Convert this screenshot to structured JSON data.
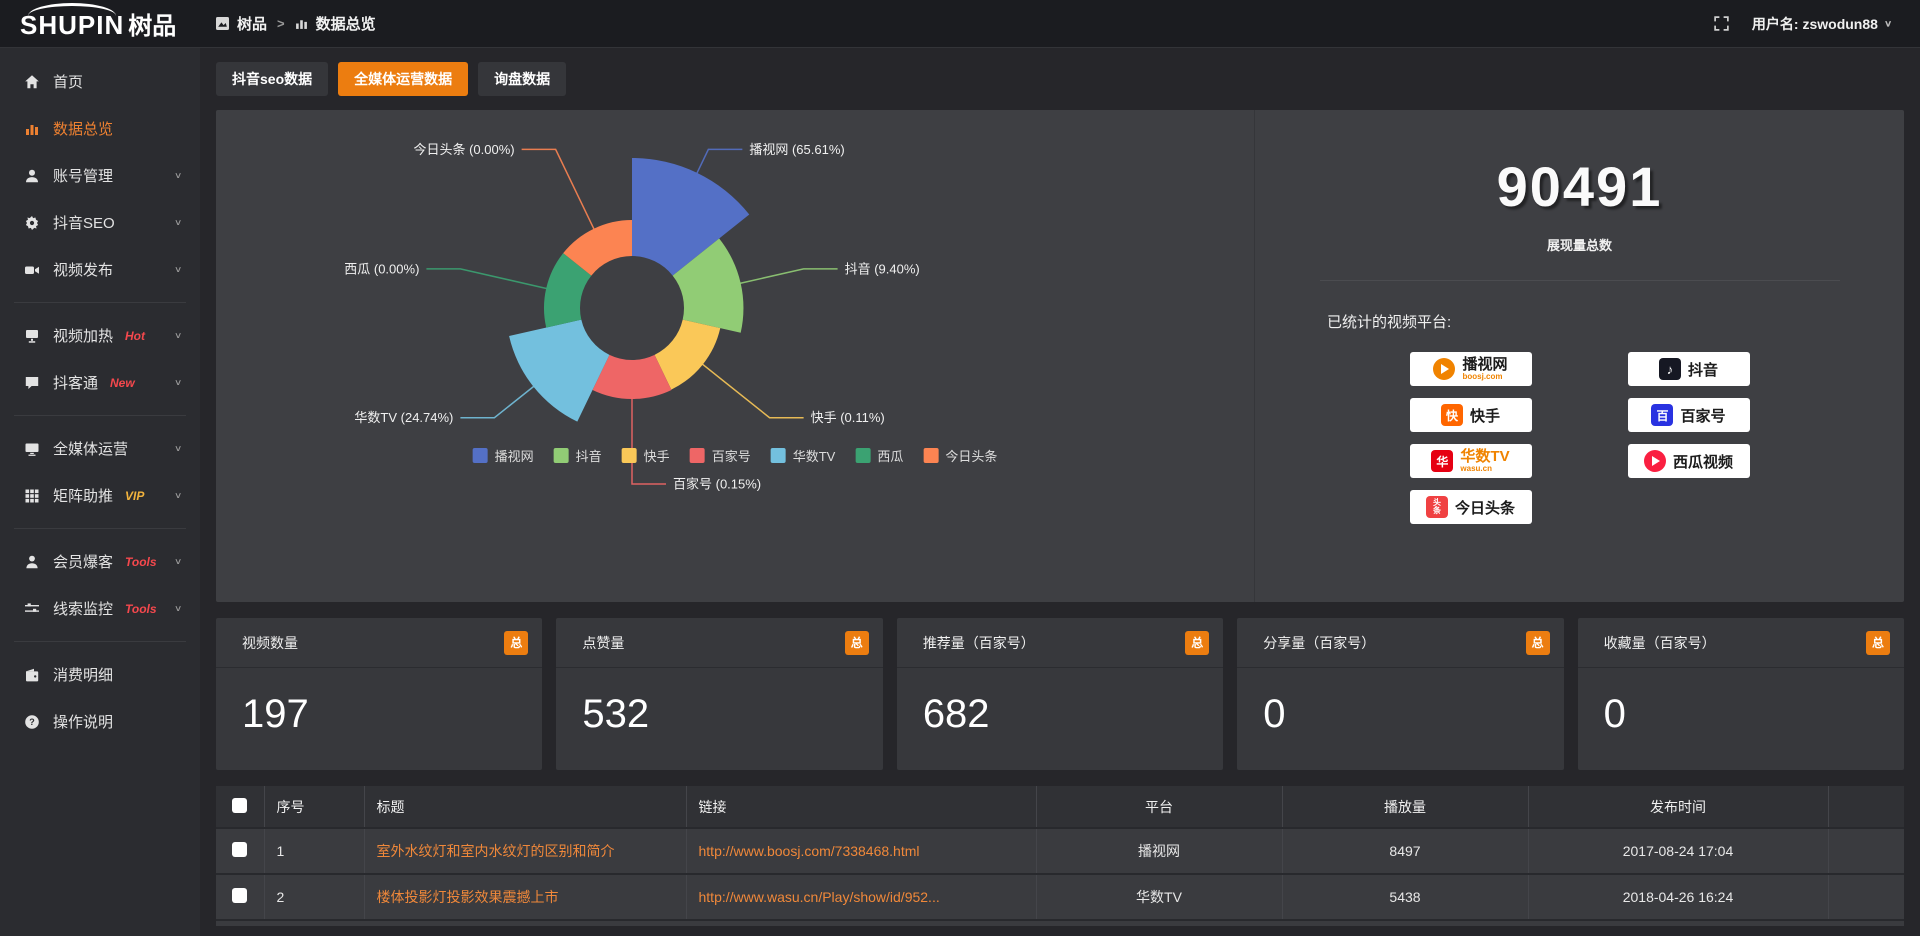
{
  "colors": {
    "accent": "#ec7d10",
    "link": "#f0883a",
    "badge_red": "#f5484d",
    "badge_gold": "#f2b33d"
  },
  "topbar": {
    "logo_en": "SHUPIN",
    "logo_cn": "树品",
    "breadcrumb": {
      "root": "树品",
      "sep": ">",
      "current": "数据总览"
    },
    "username": "用户名: zswodun88",
    "username_chevron": "∨"
  },
  "sidebar": {
    "items": [
      {
        "label": "首页"
      },
      {
        "label": "数据总览"
      },
      {
        "label": "账号管理"
      },
      {
        "label": "抖音SEO"
      },
      {
        "label": "视频发布"
      },
      {
        "label": "视频加热",
        "badge": "Hot"
      },
      {
        "label": "抖客通",
        "badge": "New"
      },
      {
        "label": "全媒体运营"
      },
      {
        "label": "矩阵助推",
        "badge": "VIP"
      },
      {
        "label": "会员爆客",
        "badge": "Tools"
      },
      {
        "label": "线索监控",
        "badge": "Tools"
      },
      {
        "label": "消费明细"
      },
      {
        "label": "操作说明"
      }
    ],
    "chevron": "∨"
  },
  "tabs": [
    {
      "label": "抖音seo数据",
      "active": false
    },
    {
      "label": "全媒体运营数据",
      "active": true
    },
    {
      "label": "询盘数据",
      "active": false
    }
  ],
  "chart_data": {
    "type": "pie",
    "style": "nightingale-rose, donut hole, outside labels with leader lines",
    "series": [
      {
        "name": "播视网",
        "percent": 65.61
      },
      {
        "name": "抖音",
        "percent": 9.4
      },
      {
        "name": "快手",
        "percent": 0.11
      },
      {
        "name": "百家号",
        "percent": 0.15
      },
      {
        "name": "华数TV",
        "percent": 24.74
      },
      {
        "name": "西瓜",
        "percent": 0.0
      },
      {
        "name": "今日头条",
        "percent": 0.0
      }
    ],
    "colors": [
      "#5470c6",
      "#91cc75",
      "#fac858",
      "#ee6666",
      "#73c0de",
      "#3ba272",
      "#fc8452"
    ],
    "label_format": "{name} ({percent}%)",
    "legend_position": "bottom"
  },
  "summary": {
    "total": "90491",
    "total_label": "展现量总数",
    "platforms_label": "已统计的视频平台:",
    "platforms": [
      {
        "name": "播视网",
        "sub": "boosj.com"
      },
      {
        "name": "抖音"
      },
      {
        "name": "快手"
      },
      {
        "name": "百家号"
      },
      {
        "name": "华数TV",
        "sub": "wasu.cn"
      },
      {
        "name": "西瓜视频"
      },
      {
        "name": "今日头条"
      }
    ]
  },
  "stats": [
    {
      "label": "视频数量",
      "value": "197",
      "badge": "总"
    },
    {
      "label": "点赞量",
      "value": "532",
      "badge": "总"
    },
    {
      "label": "推荐量（百家号）",
      "value": "682",
      "badge": "总"
    },
    {
      "label": "分享量（百家号）",
      "value": "0",
      "badge": "总"
    },
    {
      "label": "收藏量（百家号）",
      "value": "0",
      "badge": "总"
    }
  ],
  "table": {
    "headers": {
      "index": "序号",
      "title": "标题",
      "link": "链接",
      "platform": "平台",
      "plays": "播放量",
      "published": "发布时间"
    },
    "rows": [
      {
        "index": "1",
        "title": "室外水纹灯和室内水纹灯的区别和简介",
        "link": "http://www.boosj.com/7338468.html",
        "platform": "播视网",
        "plays": "8497",
        "published": "2017-08-24 17:04"
      },
      {
        "index": "2",
        "title": "楼体投影灯投影效果震撼上市",
        "link": "http://www.wasu.cn/Play/show/id/952...",
        "platform": "华数TV",
        "plays": "5438",
        "published": "2018-04-26 16:24"
      }
    ]
  }
}
